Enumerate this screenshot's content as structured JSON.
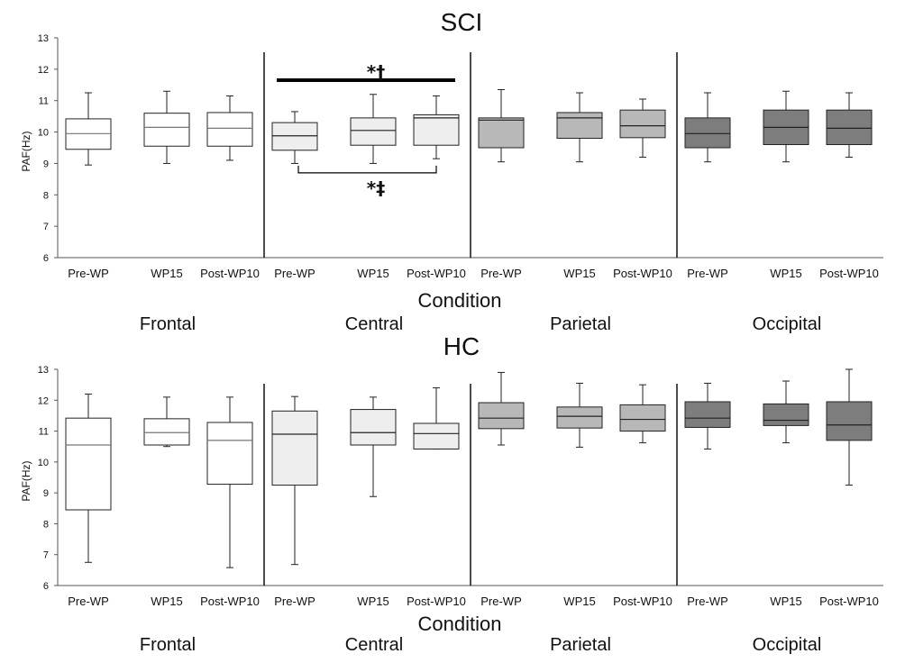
{
  "chart_data": [
    {
      "type": "box",
      "title": "SCI",
      "xlabel": "Condition",
      "ylabel": "PAF(Hz)",
      "ylim": [
        6,
        13
      ],
      "yticks": [
        6,
        7,
        8,
        9,
        10,
        11,
        12,
        13
      ],
      "regions": [
        "Frontal",
        "Central",
        "Parietal",
        "Occipital"
      ],
      "categories": [
        "Pre-WP",
        "WP15",
        "Post-WP10"
      ],
      "colors": [
        "#ffffff",
        "#eeeeee",
        "#b8b8b8",
        "#7d7d7d"
      ],
      "boxes": [
        {
          "region": "Frontal",
          "condition": "Pre-WP",
          "min": 8.95,
          "q1": 9.45,
          "median": 9.95,
          "q3": 10.42,
          "max": 11.25
        },
        {
          "region": "Frontal",
          "condition": "WP15",
          "min": 9.0,
          "q1": 9.55,
          "median": 10.15,
          "q3": 10.6,
          "max": 11.3
        },
        {
          "region": "Frontal",
          "condition": "Post-WP10",
          "min": 9.1,
          "q1": 9.55,
          "median": 10.12,
          "q3": 10.62,
          "max": 11.15
        },
        {
          "region": "Central",
          "condition": "Pre-WP",
          "min": 9.0,
          "q1": 9.42,
          "median": 9.88,
          "q3": 10.3,
          "max": 10.65
        },
        {
          "region": "Central",
          "condition": "WP15",
          "min": 9.0,
          "q1": 9.58,
          "median": 10.05,
          "q3": 10.45,
          "max": 11.2
        },
        {
          "region": "Central",
          "condition": "Post-WP10",
          "min": 9.15,
          "q1": 9.58,
          "median": 10.45,
          "q3": 10.55,
          "max": 11.15
        },
        {
          "region": "Parietal",
          "condition": "Pre-WP",
          "min": 9.05,
          "q1": 9.5,
          "median": 10.38,
          "q3": 10.45,
          "max": 11.35
        },
        {
          "region": "Parietal",
          "condition": "WP15",
          "min": 9.05,
          "q1": 9.8,
          "median": 10.45,
          "q3": 10.62,
          "max": 11.25
        },
        {
          "region": "Parietal",
          "condition": "Post-WP10",
          "min": 9.2,
          "q1": 9.82,
          "median": 10.2,
          "q3": 10.7,
          "max": 11.05
        },
        {
          "region": "Occipital",
          "condition": "Pre-WP",
          "min": 9.05,
          "q1": 9.5,
          "median": 9.95,
          "q3": 10.45,
          "max": 11.25
        },
        {
          "region": "Occipital",
          "condition": "WP15",
          "min": 9.05,
          "q1": 9.6,
          "median": 10.15,
          "q3": 10.7,
          "max": 11.3
        },
        {
          "region": "Occipital",
          "condition": "Post-WP10",
          "min": 9.2,
          "q1": 9.6,
          "median": 10.12,
          "q3": 10.7,
          "max": 11.25
        }
      ],
      "annotations": [
        {
          "text": "*†",
          "type": "bar",
          "from": "Central Pre-WP",
          "to": "Central Post-WP10",
          "y": 11.65
        },
        {
          "text": "*‡",
          "type": "bracket",
          "from": "Central Pre-WP",
          "to": "Central Post-WP10",
          "y": 8.7
        }
      ]
    },
    {
      "type": "box",
      "title": "HC",
      "xlabel": "Condition",
      "ylabel": "PAF(Hz)",
      "ylim": [
        6,
        13
      ],
      "yticks": [
        6,
        7,
        8,
        9,
        10,
        11,
        12,
        13
      ],
      "regions": [
        "Frontal",
        "Central",
        "Parietal",
        "Occipital"
      ],
      "categories": [
        "Pre-WP",
        "WP15",
        "Post-WP10"
      ],
      "colors": [
        "#ffffff",
        "#eeeeee",
        "#b8b8b8",
        "#7d7d7d"
      ],
      "boxes": [
        {
          "region": "Frontal",
          "condition": "Pre-WP",
          "min": 6.75,
          "q1": 8.45,
          "median": 10.55,
          "q3": 11.42,
          "max": 12.2
        },
        {
          "region": "Frontal",
          "condition": "WP15",
          "min": 10.5,
          "q1": 10.55,
          "median": 10.95,
          "q3": 11.4,
          "max": 12.1
        },
        {
          "region": "Frontal",
          "condition": "Post-WP10",
          "min": 6.58,
          "q1": 9.28,
          "median": 10.7,
          "q3": 11.28,
          "max": 12.1
        },
        {
          "region": "Central",
          "condition": "Pre-WP",
          "min": 6.68,
          "q1": 9.25,
          "median": 10.9,
          "q3": 11.65,
          "max": 12.12
        },
        {
          "region": "Central",
          "condition": "WP15",
          "min": 8.88,
          "q1": 10.55,
          "median": 10.95,
          "q3": 11.7,
          "max": 12.1
        },
        {
          "region": "Central",
          "condition": "Post-WP10",
          "min": 10.42,
          "q1": 10.42,
          "median": 10.92,
          "q3": 11.25,
          "max": 12.4
        },
        {
          "region": "Parietal",
          "condition": "Pre-WP",
          "min": 10.55,
          "q1": 11.08,
          "median": 11.42,
          "q3": 11.92,
          "max": 12.9
        },
        {
          "region": "Parietal",
          "condition": "WP15",
          "min": 10.48,
          "q1": 11.1,
          "median": 11.48,
          "q3": 11.78,
          "max": 12.55
        },
        {
          "region": "Parietal",
          "condition": "Post-WP10",
          "min": 10.62,
          "q1": 11.0,
          "median": 11.38,
          "q3": 11.85,
          "max": 12.5
        },
        {
          "region": "Occipital",
          "condition": "Pre-WP",
          "min": 10.42,
          "q1": 11.12,
          "median": 11.42,
          "q3": 11.95,
          "max": 12.55
        },
        {
          "region": "Occipital",
          "condition": "WP15",
          "min": 10.62,
          "q1": 11.18,
          "median": 11.35,
          "q3": 11.88,
          "max": 12.62
        },
        {
          "region": "Occipital",
          "condition": "Post-WP10",
          "min": 9.25,
          "q1": 10.7,
          "median": 11.2,
          "q3": 11.95,
          "max": 13.0
        }
      ],
      "annotations": []
    }
  ]
}
